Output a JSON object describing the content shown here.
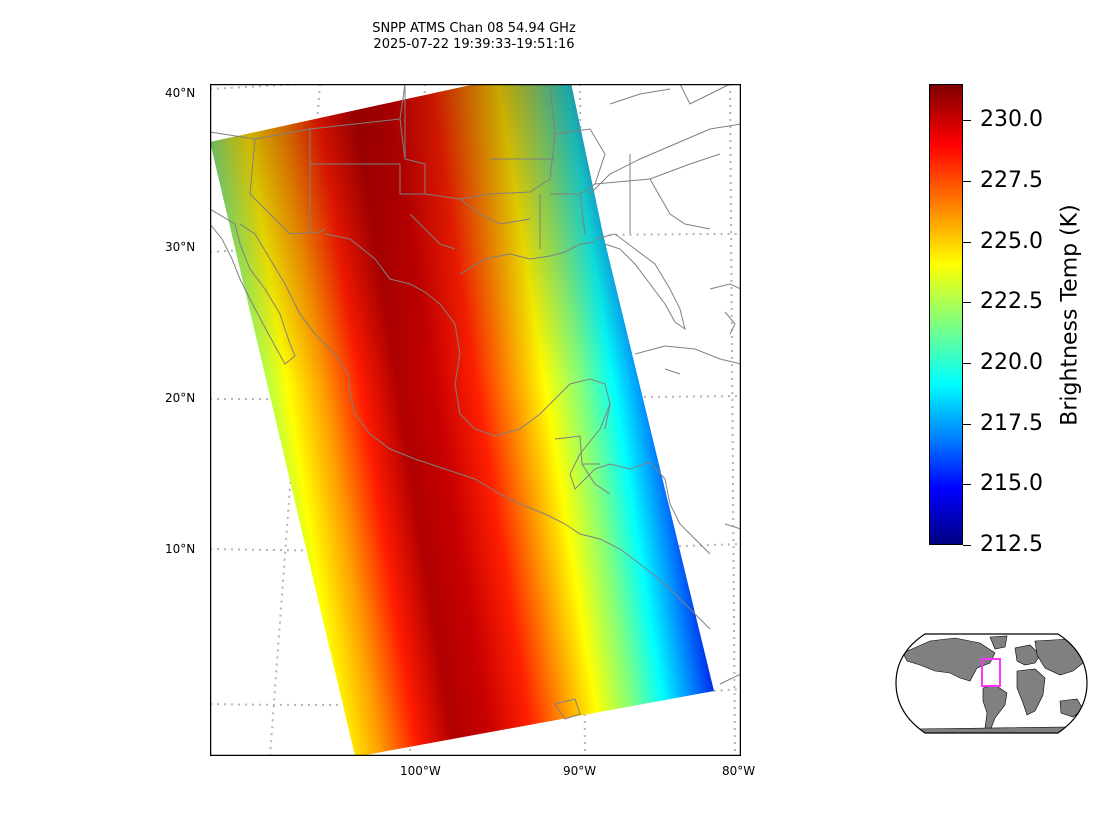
{
  "title": {
    "line1": "SNPP ATMS Chan 08 54.94 GHz",
    "line2": "2025-07-22 19:39:33-19:51:16"
  },
  "map": {
    "lat_labels": [
      "40°N",
      "30°N",
      "20°N",
      "10°N"
    ],
    "lon_labels": [
      "100°W",
      "90°W",
      "80°W"
    ]
  },
  "colorbar": {
    "label": "Brightness Temp (K)",
    "ticks": [
      "230.0",
      "227.5",
      "225.0",
      "222.5",
      "220.0",
      "217.5",
      "215.0",
      "212.5"
    ],
    "range": [
      212.5,
      231.5
    ],
    "colormap": "jet"
  },
  "inset": {
    "box_color": "#ff33ff",
    "land_color": "#808080"
  }
}
